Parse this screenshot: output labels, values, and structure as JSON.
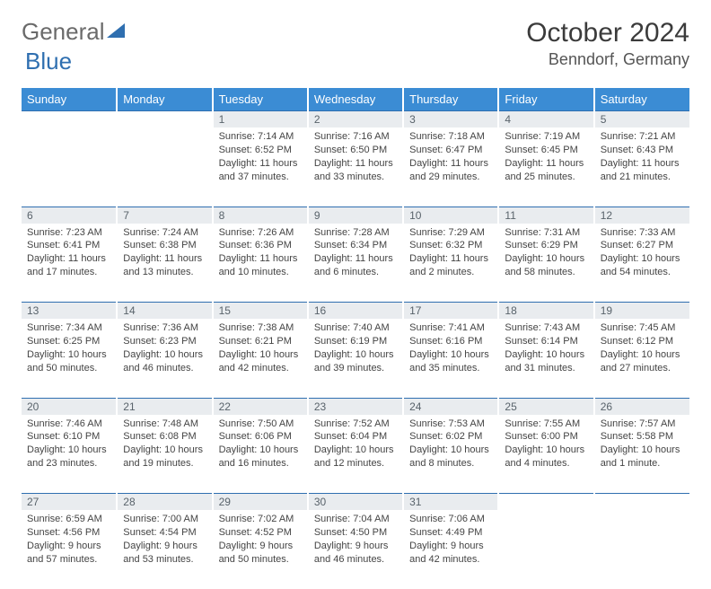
{
  "logo": {
    "gray": "General",
    "blue": "Blue"
  },
  "title": "October 2024",
  "location": "Benndorf, Germany",
  "colors": {
    "header_bg": "#3b8cd4",
    "header_text": "#ffffff",
    "daynum_bg": "#e9ecef",
    "border_top": "#2f6fb0",
    "logo_gray": "#6a6a6a",
    "logo_blue": "#2f6fb0"
  },
  "dayHeaders": [
    "Sunday",
    "Monday",
    "Tuesday",
    "Wednesday",
    "Thursday",
    "Friday",
    "Saturday"
  ],
  "weeks": [
    [
      null,
      null,
      {
        "n": "1",
        "sr": "7:14 AM",
        "ss": "6:52 PM",
        "dl": "11 hours and 37 minutes."
      },
      {
        "n": "2",
        "sr": "7:16 AM",
        "ss": "6:50 PM",
        "dl": "11 hours and 33 minutes."
      },
      {
        "n": "3",
        "sr": "7:18 AM",
        "ss": "6:47 PM",
        "dl": "11 hours and 29 minutes."
      },
      {
        "n": "4",
        "sr": "7:19 AM",
        "ss": "6:45 PM",
        "dl": "11 hours and 25 minutes."
      },
      {
        "n": "5",
        "sr": "7:21 AM",
        "ss": "6:43 PM",
        "dl": "11 hours and 21 minutes."
      }
    ],
    [
      {
        "n": "6",
        "sr": "7:23 AM",
        "ss": "6:41 PM",
        "dl": "11 hours and 17 minutes."
      },
      {
        "n": "7",
        "sr": "7:24 AM",
        "ss": "6:38 PM",
        "dl": "11 hours and 13 minutes."
      },
      {
        "n": "8",
        "sr": "7:26 AM",
        "ss": "6:36 PM",
        "dl": "11 hours and 10 minutes."
      },
      {
        "n": "9",
        "sr": "7:28 AM",
        "ss": "6:34 PM",
        "dl": "11 hours and 6 minutes."
      },
      {
        "n": "10",
        "sr": "7:29 AM",
        "ss": "6:32 PM",
        "dl": "11 hours and 2 minutes."
      },
      {
        "n": "11",
        "sr": "7:31 AM",
        "ss": "6:29 PM",
        "dl": "10 hours and 58 minutes."
      },
      {
        "n": "12",
        "sr": "7:33 AM",
        "ss": "6:27 PM",
        "dl": "10 hours and 54 minutes."
      }
    ],
    [
      {
        "n": "13",
        "sr": "7:34 AM",
        "ss": "6:25 PM",
        "dl": "10 hours and 50 minutes."
      },
      {
        "n": "14",
        "sr": "7:36 AM",
        "ss": "6:23 PM",
        "dl": "10 hours and 46 minutes."
      },
      {
        "n": "15",
        "sr": "7:38 AM",
        "ss": "6:21 PM",
        "dl": "10 hours and 42 minutes."
      },
      {
        "n": "16",
        "sr": "7:40 AM",
        "ss": "6:19 PM",
        "dl": "10 hours and 39 minutes."
      },
      {
        "n": "17",
        "sr": "7:41 AM",
        "ss": "6:16 PM",
        "dl": "10 hours and 35 minutes."
      },
      {
        "n": "18",
        "sr": "7:43 AM",
        "ss": "6:14 PM",
        "dl": "10 hours and 31 minutes."
      },
      {
        "n": "19",
        "sr": "7:45 AM",
        "ss": "6:12 PM",
        "dl": "10 hours and 27 minutes."
      }
    ],
    [
      {
        "n": "20",
        "sr": "7:46 AM",
        "ss": "6:10 PM",
        "dl": "10 hours and 23 minutes."
      },
      {
        "n": "21",
        "sr": "7:48 AM",
        "ss": "6:08 PM",
        "dl": "10 hours and 19 minutes."
      },
      {
        "n": "22",
        "sr": "7:50 AM",
        "ss": "6:06 PM",
        "dl": "10 hours and 16 minutes."
      },
      {
        "n": "23",
        "sr": "7:52 AM",
        "ss": "6:04 PM",
        "dl": "10 hours and 12 minutes."
      },
      {
        "n": "24",
        "sr": "7:53 AM",
        "ss": "6:02 PM",
        "dl": "10 hours and 8 minutes."
      },
      {
        "n": "25",
        "sr": "7:55 AM",
        "ss": "6:00 PM",
        "dl": "10 hours and 4 minutes."
      },
      {
        "n": "26",
        "sr": "7:57 AM",
        "ss": "5:58 PM",
        "dl": "10 hours and 1 minute."
      }
    ],
    [
      {
        "n": "27",
        "sr": "6:59 AM",
        "ss": "4:56 PM",
        "dl": "9 hours and 57 minutes."
      },
      {
        "n": "28",
        "sr": "7:00 AM",
        "ss": "4:54 PM",
        "dl": "9 hours and 53 minutes."
      },
      {
        "n": "29",
        "sr": "7:02 AM",
        "ss": "4:52 PM",
        "dl": "9 hours and 50 minutes."
      },
      {
        "n": "30",
        "sr": "7:04 AM",
        "ss": "4:50 PM",
        "dl": "9 hours and 46 minutes."
      },
      {
        "n": "31",
        "sr": "7:06 AM",
        "ss": "4:49 PM",
        "dl": "9 hours and 42 minutes."
      },
      null,
      null
    ]
  ],
  "labels": {
    "sunrise": "Sunrise:",
    "sunset": "Sunset:",
    "daylight": "Daylight:"
  }
}
